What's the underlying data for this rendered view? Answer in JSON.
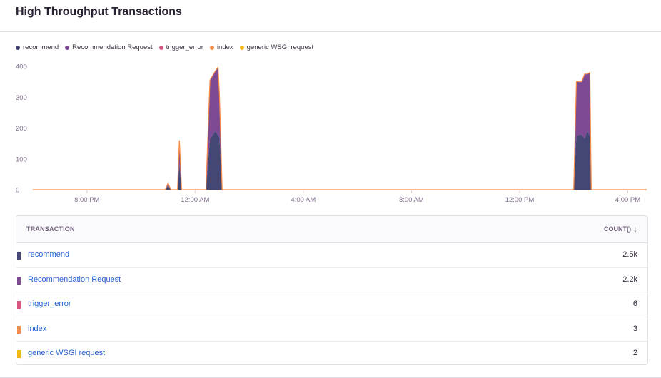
{
  "widget": {
    "title": "High Throughput Transactions"
  },
  "colors": {
    "recommend": "#444674",
    "recommendation_request": "#7e4a93",
    "trigger_error": "#d6567f",
    "index": "#f58c46",
    "generic_wsgi": "#f2b712"
  },
  "legend": [
    {
      "label": "recommend",
      "color": "#444674"
    },
    {
      "label": "Recommendation Request",
      "color": "#7e4a93"
    },
    {
      "label": "trigger_error",
      "color": "#d6567f"
    },
    {
      "label": "index",
      "color": "#f58c46"
    },
    {
      "label": "generic WSGI request",
      "color": "#f2b712"
    }
  ],
  "chart_data": {
    "type": "area",
    "stacked": true,
    "ylim": [
      0,
      400
    ],
    "yticks": [
      0,
      100,
      200,
      300,
      400
    ],
    "xticks": [
      "8:00 PM",
      "12:00 AM",
      "4:00 AM",
      "8:00 AM",
      "12:00 PM",
      "4:00 PM"
    ],
    "x_unit": "hours since 8:00 PM",
    "x_range": [
      -2.0,
      20.7
    ],
    "series": [
      {
        "name": "recommend",
        "color": "#444674",
        "points": [
          [
            -2,
            0
          ],
          [
            2.9,
            0
          ],
          [
            3.0,
            12
          ],
          [
            3.1,
            0
          ],
          [
            3.35,
            0
          ],
          [
            3.42,
            80
          ],
          [
            3.5,
            0
          ],
          [
            4.4,
            0
          ],
          [
            4.55,
            165
          ],
          [
            4.75,
            190
          ],
          [
            4.9,
            170
          ],
          [
            5.0,
            0
          ],
          [
            18.0,
            0
          ],
          [
            18.1,
            175
          ],
          [
            18.3,
            180
          ],
          [
            18.4,
            165
          ],
          [
            18.5,
            190
          ],
          [
            18.6,
            175
          ],
          [
            18.65,
            0
          ],
          [
            20.7,
            0
          ]
        ]
      },
      {
        "name": "Recommendation Request",
        "color": "#7e4a93",
        "points": [
          [
            -2,
            0
          ],
          [
            2.9,
            0
          ],
          [
            3.0,
            10
          ],
          [
            3.1,
            0
          ],
          [
            3.35,
            0
          ],
          [
            3.42,
            80
          ],
          [
            3.5,
            0
          ],
          [
            4.4,
            0
          ],
          [
            4.55,
            190
          ],
          [
            4.75,
            195
          ],
          [
            4.85,
            220
          ],
          [
            4.9,
            140
          ],
          [
            5.0,
            0
          ],
          [
            18.0,
            0
          ],
          [
            18.1,
            175
          ],
          [
            18.3,
            170
          ],
          [
            18.4,
            210
          ],
          [
            18.5,
            185
          ],
          [
            18.6,
            205
          ],
          [
            18.65,
            0
          ],
          [
            20.7,
            0
          ]
        ]
      },
      {
        "name": "trigger_error",
        "color": "#d6567f",
        "points": [
          [
            -2,
            0
          ],
          [
            20.7,
            0
          ]
        ]
      },
      {
        "name": "index",
        "color": "#f58c46",
        "points": [
          [
            -2,
            0
          ],
          [
            20.7,
            0
          ]
        ]
      },
      {
        "name": "generic WSGI request",
        "color": "#f2b712",
        "points": [
          [
            -2,
            0
          ],
          [
            20.7,
            0
          ]
        ]
      }
    ]
  },
  "table": {
    "col_transaction": "TRANSACTION",
    "col_count": "COUNT()",
    "sort_icon": "↓",
    "rows": [
      {
        "name": "recommend",
        "count": "2.5k",
        "color": "#444674"
      },
      {
        "name": "Recommendation Request",
        "count": "2.2k",
        "color": "#7e4a93"
      },
      {
        "name": "trigger_error",
        "count": "6",
        "color": "#d6567f"
      },
      {
        "name": "index",
        "count": "3",
        "color": "#f58c46"
      },
      {
        "name": "generic WSGI request",
        "count": "2",
        "color": "#f2b712"
      }
    ]
  }
}
